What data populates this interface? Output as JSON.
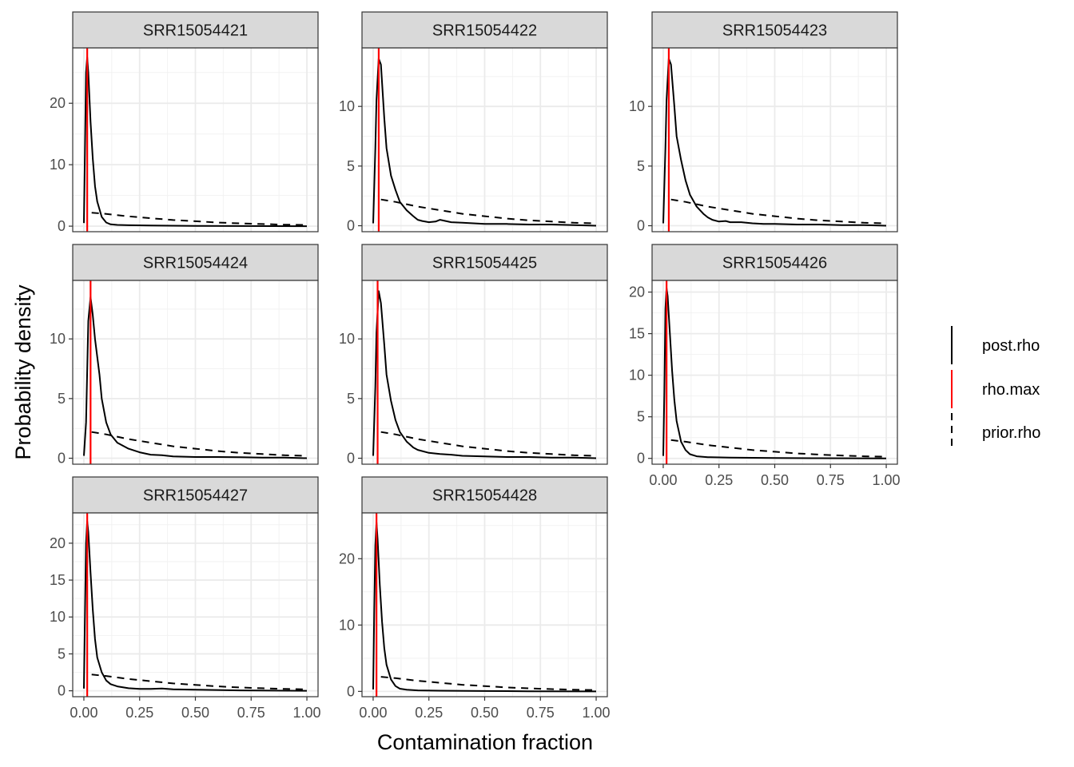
{
  "chart_data": {
    "type": "line",
    "xlabel": "Contamination fraction",
    "ylabel": "Probability density",
    "xlim": [
      0,
      1
    ],
    "x_ticks": [
      0,
      0.25,
      0.5,
      0.75,
      1
    ],
    "x_tick_labels": [
      "0.00",
      "0.25",
      "0.50",
      "0.75",
      "1.00"
    ],
    "grid": true,
    "legend_position": "right",
    "legend": [
      {
        "name": "post.rho",
        "color": "#000000",
        "dash": "solid"
      },
      {
        "name": "rho.max",
        "color": "#ff0000",
        "dash": "solid"
      },
      {
        "name": "prior.rho",
        "color": "#000000",
        "dash": "dashed"
      }
    ],
    "prior_rho": {
      "x": [
        0.035,
        0.1,
        0.2,
        0.3,
        0.4,
        0.5,
        0.6,
        0.7,
        0.8,
        0.9,
        1.0
      ],
      "y": [
        2.2,
        2.0,
        1.6,
        1.3,
        1.0,
        0.8,
        0.6,
        0.45,
        0.35,
        0.25,
        0.2
      ]
    },
    "panels": [
      {
        "title": "SRR15054421",
        "ylim": [
          -0.9,
          29
        ],
        "y_ticks": [
          0,
          10,
          20
        ],
        "rho_max": 0.015,
        "posterior": {
          "x": [
            0.0,
            0.005,
            0.01,
            0.015,
            0.02,
            0.03,
            0.04,
            0.05,
            0.06,
            0.08,
            0.1,
            0.12,
            0.15,
            0.2,
            0.3,
            0.5,
            0.7,
            1.0
          ],
          "y": [
            0.5,
            12,
            25,
            27.5,
            25,
            17,
            11,
            6.5,
            4,
            1.5,
            0.6,
            0.3,
            0.2,
            0.15,
            0.1,
            0.05,
            0.02,
            0.0
          ]
        }
      },
      {
        "title": "SRR15054422",
        "ylim": [
          -0.5,
          14.9
        ],
        "y_ticks": [
          0,
          5,
          10
        ],
        "rho_max": 0.025,
        "posterior": {
          "x": [
            0.0,
            0.01,
            0.015,
            0.025,
            0.035,
            0.05,
            0.06,
            0.08,
            0.1,
            0.12,
            0.15,
            0.18,
            0.2,
            0.22,
            0.25,
            0.28,
            0.3,
            0.35,
            0.4,
            0.45,
            0.5,
            0.6,
            0.7,
            0.8,
            0.9,
            1.0
          ],
          "y": [
            0.2,
            6.5,
            10.5,
            14,
            13.5,
            9,
            6.5,
            4.2,
            3.0,
            2.0,
            1.3,
            0.8,
            0.5,
            0.4,
            0.3,
            0.35,
            0.5,
            0.3,
            0.25,
            0.2,
            0.15,
            0.15,
            0.1,
            0.1,
            0.05,
            0.0
          ]
        }
      },
      {
        "title": "SRR15054423",
        "ylim": [
          -0.5,
          14.9
        ],
        "y_ticks": [
          0,
          5,
          10
        ],
        "rho_max": 0.025,
        "posterior": {
          "x": [
            0.0,
            0.01,
            0.015,
            0.025,
            0.035,
            0.05,
            0.06,
            0.08,
            0.1,
            0.12,
            0.15,
            0.18,
            0.2,
            0.22,
            0.25,
            0.28,
            0.3,
            0.35,
            0.4,
            0.45,
            0.5,
            0.6,
            0.7,
            0.8,
            0.9,
            1.0
          ],
          "y": [
            0.2,
            6.5,
            10.5,
            14,
            13.5,
            10,
            7.5,
            5.5,
            3.8,
            2.6,
            1.6,
            1.0,
            0.7,
            0.5,
            0.35,
            0.4,
            0.3,
            0.3,
            0.2,
            0.15,
            0.15,
            0.1,
            0.1,
            0.05,
            0.05,
            0.0
          ]
        }
      },
      {
        "title": "SRR15054424",
        "ylim": [
          -0.5,
          14.9
        ],
        "y_ticks": [
          0,
          5,
          10
        ],
        "rho_max": 0.03,
        "posterior": {
          "x": [
            0.0,
            0.01,
            0.02,
            0.03,
            0.04,
            0.05,
            0.06,
            0.07,
            0.08,
            0.1,
            0.12,
            0.15,
            0.2,
            0.25,
            0.3,
            0.35,
            0.4,
            0.5,
            0.6,
            0.7,
            0.8,
            0.9,
            1.0
          ],
          "y": [
            0.2,
            3.0,
            11.5,
            13.5,
            12,
            10,
            8.5,
            7.0,
            5.0,
            3.0,
            2.0,
            1.3,
            0.8,
            0.5,
            0.3,
            0.25,
            0.15,
            0.1,
            0.1,
            0.08,
            0.05,
            0.05,
            0.0
          ]
        }
      },
      {
        "title": "SRR15054425",
        "ylim": [
          -0.5,
          14.9
        ],
        "y_ticks": [
          0,
          5,
          10
        ],
        "rho_max": 0.02,
        "posterior": {
          "x": [
            0.0,
            0.01,
            0.015,
            0.025,
            0.035,
            0.05,
            0.06,
            0.08,
            0.1,
            0.12,
            0.15,
            0.18,
            0.2,
            0.25,
            0.3,
            0.35,
            0.4,
            0.5,
            0.6,
            0.7,
            0.8,
            0.9,
            1.0
          ],
          "y": [
            0.2,
            6.0,
            10.5,
            14,
            13,
            9.5,
            7.0,
            4.8,
            3.2,
            2.2,
            1.4,
            0.9,
            0.7,
            0.45,
            0.35,
            0.3,
            0.2,
            0.15,
            0.1,
            0.1,
            0.05,
            0.05,
            0.0
          ]
        }
      },
      {
        "title": "SRR15054426",
        "ylim": [
          -0.7,
          21.4
        ],
        "y_ticks": [
          0,
          5,
          10,
          15,
          20
        ],
        "rho_max": 0.015,
        "posterior": {
          "x": [
            0.0,
            0.005,
            0.01,
            0.015,
            0.02,
            0.03,
            0.04,
            0.05,
            0.06,
            0.08,
            0.1,
            0.12,
            0.15,
            0.2,
            0.3,
            0.5,
            0.7,
            1.0
          ],
          "y": [
            0.3,
            8.0,
            18,
            20.5,
            19.5,
            15,
            10.5,
            7.0,
            4.5,
            2.0,
            1.0,
            0.5,
            0.25,
            0.15,
            0.1,
            0.05,
            0.02,
            0.0
          ]
        }
      },
      {
        "title": "SRR15054427",
        "ylim": [
          -0.8,
          24.1
        ],
        "y_ticks": [
          0,
          5,
          10,
          15,
          20
        ],
        "rho_max": 0.015,
        "posterior": {
          "x": [
            0.0,
            0.005,
            0.01,
            0.015,
            0.02,
            0.03,
            0.04,
            0.05,
            0.06,
            0.08,
            0.1,
            0.12,
            0.15,
            0.2,
            0.25,
            0.3,
            0.35,
            0.4,
            0.5,
            0.7,
            1.0
          ],
          "y": [
            0.3,
            10,
            20,
            23,
            21.5,
            16,
            11,
            7.0,
            4.5,
            2.5,
            1.4,
            0.9,
            0.6,
            0.35,
            0.25,
            0.25,
            0.3,
            0.2,
            0.15,
            0.05,
            0.0
          ]
        }
      },
      {
        "title": "SRR15054428",
        "ylim": [
          -0.8,
          26.9
        ],
        "y_ticks": [
          0,
          10,
          20
        ],
        "rho_max": 0.015,
        "posterior": {
          "x": [
            0.0,
            0.005,
            0.01,
            0.015,
            0.02,
            0.03,
            0.04,
            0.05,
            0.06,
            0.08,
            0.1,
            0.12,
            0.15,
            0.2,
            0.3,
            0.5,
            0.7,
            1.0
          ],
          "y": [
            0.3,
            12,
            22,
            25.5,
            23,
            16,
            10.5,
            6.5,
            4.0,
            1.8,
            0.8,
            0.4,
            0.25,
            0.15,
            0.1,
            0.05,
            0.02,
            0.0
          ]
        }
      }
    ]
  }
}
